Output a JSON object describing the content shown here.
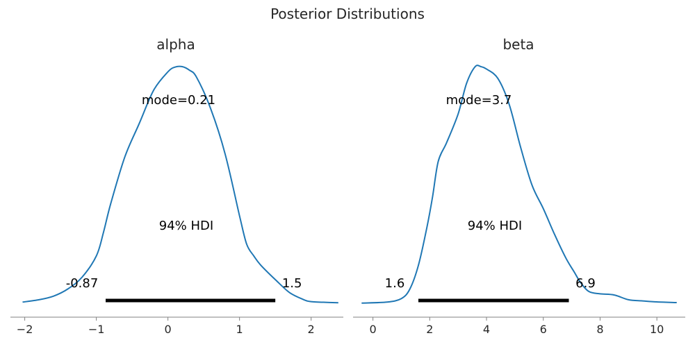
{
  "figure_title": "Posterior Distributions",
  "chart_data": [
    {
      "type": "area",
      "title": "alpha",
      "xlabel": "",
      "ylabel": "",
      "xlim": [
        -2.2,
        2.45
      ],
      "xticks": [
        -2,
        -1,
        0,
        1,
        2
      ],
      "xtick_labels": [
        "−2",
        "−1",
        "0",
        "1",
        "2"
      ],
      "grid": false,
      "color": "#1f77b4",
      "mode_label": "mode=0.21",
      "hdi_label": "94% HDI",
      "hdi": {
        "low": -0.87,
        "high": 1.5,
        "low_label": "-0.87",
        "high_label": "1.5"
      },
      "density": {
        "x": [
          -2.03,
          -1.8,
          -1.6,
          -1.4,
          -1.2,
          -1.0,
          -0.9,
          -0.8,
          -0.6,
          -0.4,
          -0.2,
          0.0,
          0.1,
          0.2,
          0.3,
          0.4,
          0.6,
          0.8,
          1.0,
          1.1,
          1.2,
          1.3,
          1.5,
          1.7,
          1.9,
          2.0,
          2.2,
          2.38
        ],
        "y": [
          0.005,
          0.015,
          0.03,
          0.06,
          0.11,
          0.2,
          0.3,
          0.42,
          0.62,
          0.76,
          0.9,
          0.978,
          0.998,
          1.0,
          0.985,
          0.955,
          0.82,
          0.63,
          0.37,
          0.25,
          0.2,
          0.16,
          0.1,
          0.045,
          0.015,
          0.007,
          0.004,
          0.002
        ]
      }
    },
    {
      "type": "area",
      "title": "beta",
      "xlabel": "",
      "ylabel": "",
      "xlim": [
        -0.7,
        11.0
      ],
      "xticks": [
        0,
        2,
        4,
        6,
        8,
        10
      ],
      "xtick_labels": [
        "0",
        "2",
        "4",
        "6",
        "8",
        "10"
      ],
      "grid": false,
      "color": "#1f77b4",
      "mode_label": "mode=3.7",
      "hdi_label": "94% HDI",
      "hdi": {
        "low": 1.6,
        "high": 6.9,
        "low_label": "1.6",
        "high_label": "6.9"
      },
      "density": {
        "x": [
          -0.4,
          0.5,
          1.0,
          1.3,
          1.6,
          1.9,
          2.1,
          2.3,
          2.6,
          3.0,
          3.3,
          3.6,
          3.8,
          4.0,
          4.4,
          4.8,
          5.2,
          5.6,
          6.0,
          6.4,
          6.8,
          7.1,
          7.3,
          7.6,
          8.0,
          8.5,
          9.0,
          9.5,
          10.0,
          10.7
        ],
        "y": [
          0.001,
          0.005,
          0.02,
          0.06,
          0.16,
          0.32,
          0.45,
          0.6,
          0.68,
          0.8,
          0.93,
          1.0,
          1.0,
          0.99,
          0.95,
          0.84,
          0.66,
          0.5,
          0.4,
          0.29,
          0.19,
          0.13,
          0.09,
          0.05,
          0.04,
          0.035,
          0.015,
          0.01,
          0.006,
          0.003
        ]
      }
    }
  ]
}
